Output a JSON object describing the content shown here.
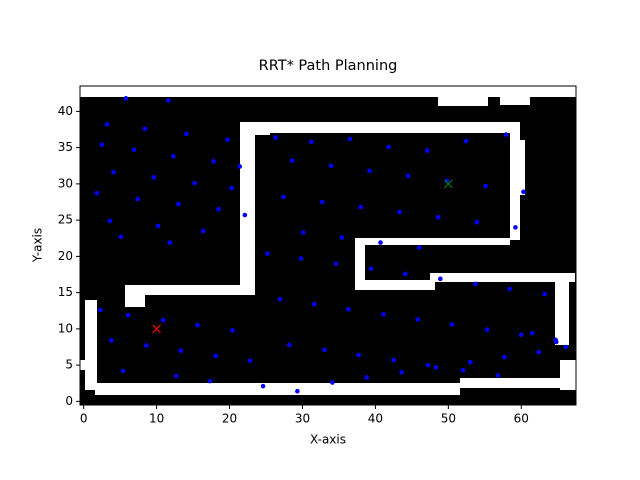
{
  "chart_data": {
    "type": "scatter",
    "title": "RRT* Path Planning",
    "xlabel": "X-axis",
    "ylabel": "Y-axis",
    "xlim": [
      -0.5,
      67.5
    ],
    "ylim": [
      -0.5,
      43.5
    ],
    "xticks": [
      0,
      10,
      20,
      30,
      40,
      50,
      60
    ],
    "yticks": [
      0,
      5,
      10,
      15,
      20,
      25,
      30,
      35,
      40
    ],
    "series": [
      {
        "color": "#0000ff",
        "marker": "o",
        "x": [
          5.8,
          11.6,
          3.2,
          8.4,
          14.1,
          19.7,
          2.5,
          6.9,
          12.3,
          17.8,
          21.4,
          4.1,
          9.6,
          15.2,
          20.3,
          1.8,
          7.4,
          13.0,
          18.5,
          22.1,
          3.6,
          10.2,
          16.4,
          5.1,
          11.8,
          26.3,
          31.2,
          36.5,
          41.8,
          47.1,
          52.4,
          57.9,
          28.6,
          33.9,
          39.2,
          44.5,
          49.8,
          55.1,
          60.3,
          27.4,
          32.7,
          38.0,
          43.3,
          48.6,
          53.9,
          59.2,
          30.1,
          35.4,
          40.7,
          46.0,
          25.2,
          29.8,
          34.6,
          39.4,
          44.1,
          48.9,
          53.7,
          58.4,
          63.2,
          26.9,
          31.6,
          36.3,
          41.1,
          45.8,
          50.5,
          55.3,
          60.0,
          64.7,
          28.2,
          33.0,
          37.7,
          42.5,
          47.2,
          52.0,
          56.8,
          2.3,
          6.1,
          10.9,
          15.6,
          20.4,
          3.8,
          8.6,
          13.3,
          18.1,
          22.8,
          5.4,
          12.7,
          17.3,
          24.6,
          29.3,
          34.1,
          38.8,
          43.6,
          48.3,
          53.0,
          57.7,
          62.4,
          66.1,
          64.8,
          61.5
        ],
        "y": [
          41.8,
          41.5,
          38.2,
          37.6,
          36.9,
          36.1,
          35.4,
          34.7,
          33.8,
          33.1,
          32.4,
          31.6,
          30.9,
          30.1,
          29.4,
          28.7,
          27.9,
          27.2,
          26.5,
          25.7,
          24.9,
          24.2,
          23.5,
          22.7,
          21.9,
          36.4,
          35.8,
          36.2,
          35.1,
          34.6,
          35.9,
          36.8,
          33.2,
          32.5,
          31.8,
          31.1,
          30.4,
          29.7,
          28.9,
          28.2,
          27.5,
          26.8,
          26.1,
          25.4,
          24.7,
          24.0,
          23.3,
          22.6,
          21.9,
          21.2,
          20.4,
          19.7,
          19.0,
          18.3,
          17.6,
          16.9,
          16.2,
          15.5,
          14.8,
          14.1,
          13.4,
          12.7,
          12.0,
          11.3,
          10.6,
          9.9,
          9.2,
          8.5,
          7.8,
          7.1,
          6.4,
          5.7,
          5.0,
          4.3,
          3.6,
          12.6,
          11.9,
          11.2,
          10.5,
          9.8,
          8.4,
          7.7,
          7.0,
          6.3,
          5.6,
          4.2,
          3.5,
          2.8,
          2.1,
          1.4,
          2.6,
          3.3,
          4.0,
          4.7,
          5.4,
          6.1,
          6.8,
          7.5,
          8.2,
          9.4
        ]
      },
      {
        "color": "#ff0000",
        "marker": "x",
        "x": [
          10
        ],
        "y": [
          10
        ]
      },
      {
        "color": "#008000",
        "marker": "x",
        "x": [
          50
        ],
        "y": [
          30
        ]
      }
    ]
  }
}
